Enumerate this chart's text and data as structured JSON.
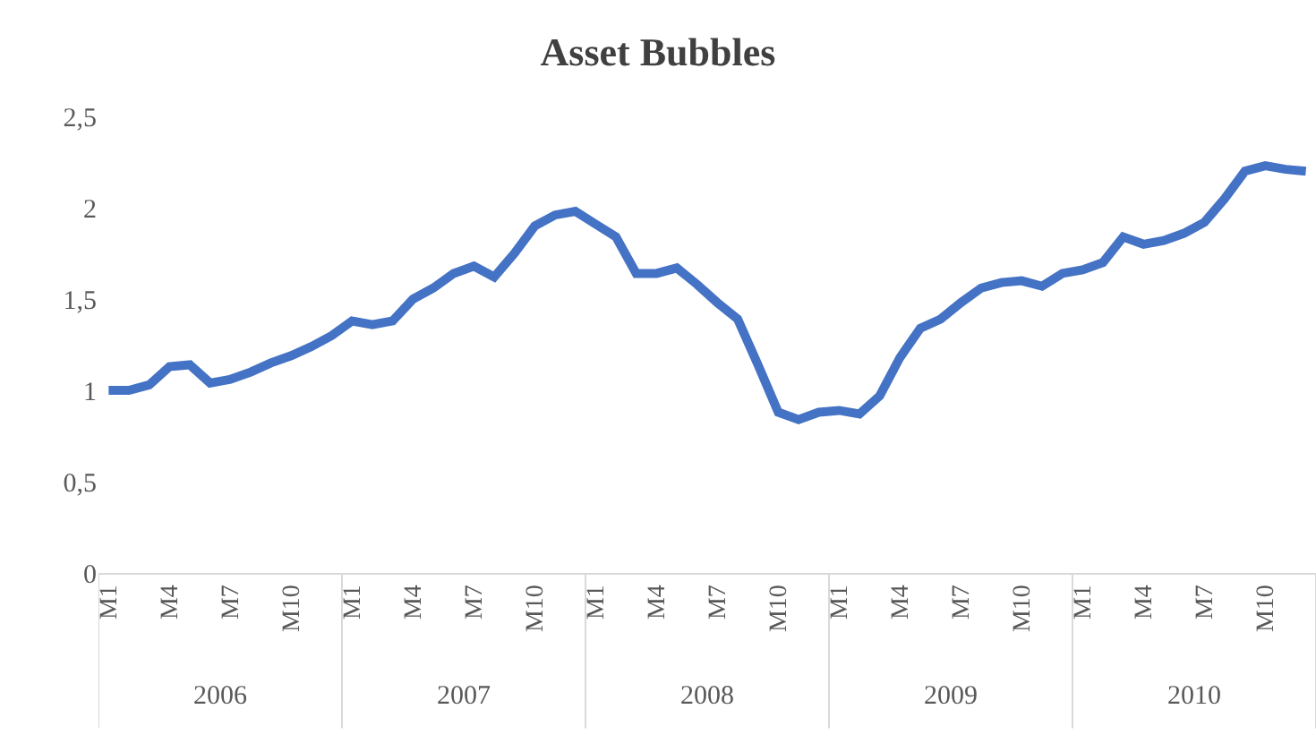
{
  "chart_data": {
    "type": "line",
    "title": "Asset Bubbles",
    "categories": [
      "M1",
      null,
      null,
      "M4",
      null,
      null,
      "M7",
      null,
      null,
      "M10",
      null,
      null,
      "M1",
      null,
      null,
      "M4",
      null,
      null,
      "M7",
      null,
      null,
      "M10",
      null,
      null,
      "M1",
      null,
      null,
      "M4",
      null,
      null,
      "M7",
      null,
      null,
      "M10",
      null,
      null,
      "M1",
      null,
      null,
      "M4",
      null,
      null,
      "M7",
      null,
      null,
      "M10",
      null,
      null,
      "M1",
      null,
      null,
      "M4",
      null,
      null,
      "M7",
      null,
      null,
      "M10",
      null,
      null
    ],
    "series": [
      {
        "color": "#4472c4",
        "values": [
          1.0,
          1.0,
          1.03,
          1.13,
          1.14,
          1.04,
          1.06,
          1.1,
          1.15,
          1.19,
          1.24,
          1.3,
          1.38,
          1.36,
          1.38,
          1.5,
          1.56,
          1.64,
          1.68,
          1.62,
          1.75,
          1.9,
          1.96,
          1.98,
          1.91,
          1.84,
          1.64,
          1.64,
          1.67,
          1.58,
          1.48,
          1.39,
          1.14,
          0.88,
          0.84,
          0.88,
          0.89,
          0.87,
          0.97,
          1.18,
          1.34,
          1.39,
          1.48,
          1.56,
          1.59,
          1.6,
          1.57,
          1.64,
          1.66,
          1.7,
          1.84,
          1.8,
          1.82,
          1.86,
          1.92,
          2.05,
          2.2,
          2.23,
          2.21,
          2.2
        ]
      }
    ],
    "annotations": [
      "2006",
      "2007",
      "2008",
      "2009",
      "2010"
    ],
    "ylim": [
      0,
      2.5
    ],
    "yticks": [
      0,
      {
        "value": 0.5,
        "label": "0,5"
      },
      1,
      {
        "value": 1.5,
        "label": "1,5"
      },
      2,
      {
        "value": 2.5,
        "label": "2,5"
      }
    ],
    "grid": false,
    "legend": false,
    "line_style": "solid",
    "marker": "none"
  }
}
